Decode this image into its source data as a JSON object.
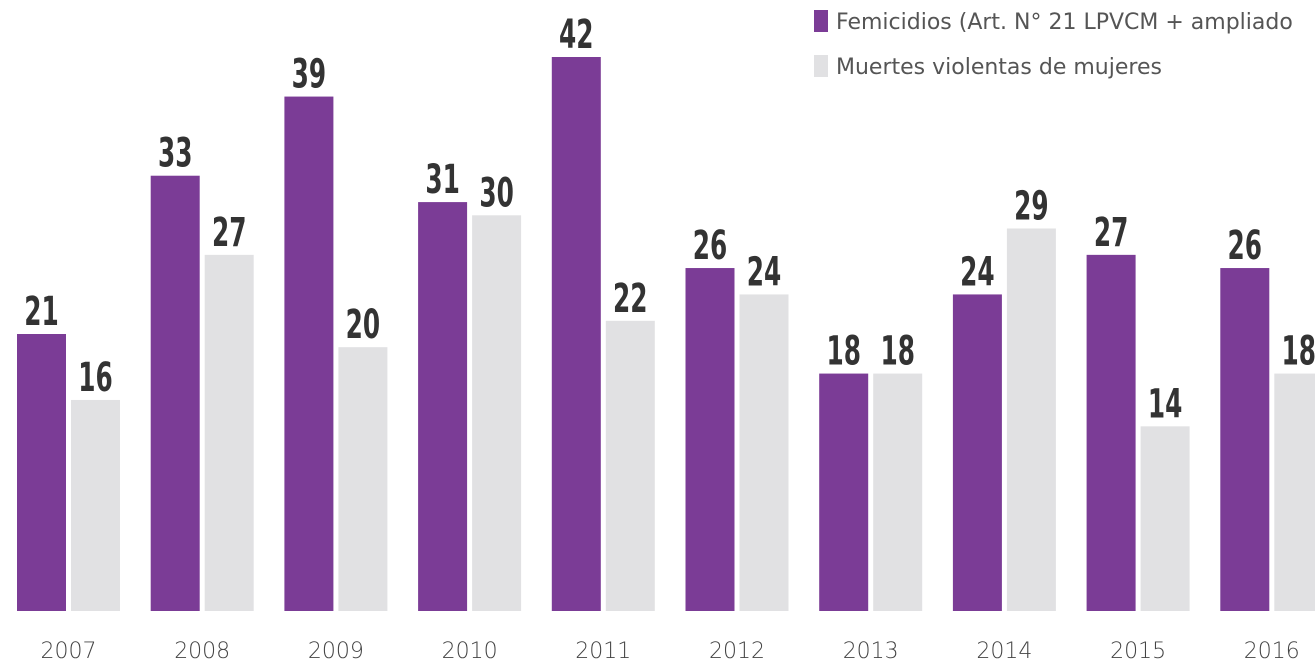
{
  "chart_data": {
    "type": "bar",
    "categories": [
      "2007",
      "2008",
      "2009",
      "2010",
      "2011",
      "2012",
      "2013",
      "2014",
      "2015",
      "2016"
    ],
    "series": [
      {
        "name": "Femicidios (Art. N° 21 LPVCM + ampliado",
        "color": "#7b3c96",
        "values": [
          21,
          33,
          39,
          31,
          42,
          26,
          18,
          24,
          27,
          26
        ]
      },
      {
        "name": "Muertes violentas de mujeres",
        "color": "#e1e1e3",
        "values": [
          16,
          27,
          20,
          30,
          22,
          24,
          18,
          29,
          14,
          18
        ]
      }
    ],
    "legend": "top-right"
  }
}
